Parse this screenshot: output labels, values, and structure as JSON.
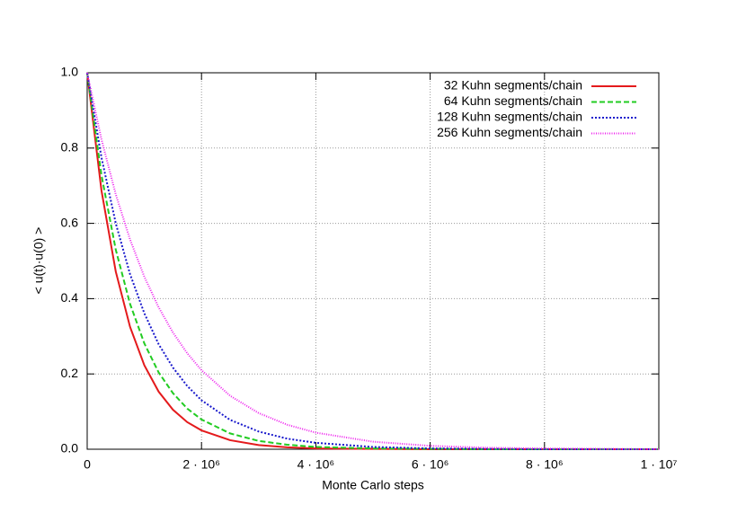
{
  "chart_data": {
    "type": "line",
    "xlabel": "Monte Carlo steps",
    "ylabel": "< u(t)·u(0) >",
    "x": [
      0,
      250000,
      500000,
      750000,
      1000000,
      1250000,
      1500000,
      1750000,
      2000000,
      2500000,
      3000000,
      3500000,
      4000000,
      5000000,
      6000000,
      7000000,
      8000000,
      9000000,
      10000000
    ],
    "series": [
      {
        "name": "32 Kuhn segments/chain",
        "color": "#e41a1c",
        "line_style": "solid",
        "values": [
          1,
          0.687,
          0.472,
          0.325,
          0.223,
          0.153,
          0.105,
          0.072,
          0.05,
          0.024,
          0.011,
          0.005,
          0.002,
          0.001,
          0,
          0,
          0,
          0,
          0
        ]
      },
      {
        "name": "64 Kuhn segments/chain",
        "color": "#22cc22",
        "line_style": "dashed",
        "values": [
          1,
          0.728,
          0.53,
          0.386,
          0.281,
          0.204,
          0.149,
          0.108,
          0.079,
          0.042,
          0.022,
          0.012,
          0.006,
          0.002,
          0.001,
          0,
          0,
          0,
          0
        ]
      },
      {
        "name": "128 Kuhn segments/chain",
        "color": "#1a1acc",
        "line_style": "dotted",
        "values": [
          1,
          0.775,
          0.6,
          0.465,
          0.361,
          0.279,
          0.217,
          0.168,
          0.13,
          0.078,
          0.047,
          0.028,
          0.017,
          0.006,
          0.002,
          0.001,
          0,
          0,
          0
        ]
      },
      {
        "name": "256 Kuhn segments/chain",
        "color": "#ee22ee",
        "line_style": "fine-dotted",
        "values": [
          1,
          0.823,
          0.677,
          0.557,
          0.458,
          0.377,
          0.31,
          0.255,
          0.21,
          0.142,
          0.096,
          0.065,
          0.044,
          0.02,
          0.009,
          0.004,
          0.002,
          0.001,
          0
        ]
      }
    ],
    "xlim": [
      0,
      10000000
    ],
    "xticks": [
      0,
      {
        "value": 2000000,
        "label": "2 · 10⁶"
      },
      {
        "value": 4000000,
        "label": "4 · 10⁶"
      },
      {
        "value": 6000000,
        "label": "6 · 10⁶"
      },
      {
        "value": 8000000,
        "label": "8 · 10⁶"
      },
      {
        "value": 10000000,
        "label": "1 · 10⁷"
      }
    ],
    "ylim": [
      0,
      1
    ],
    "yticks": [
      {
        "value": 0,
        "label": "0.0"
      },
      0.2,
      0.4,
      0.6,
      0.8,
      {
        "value": 1,
        "label": "1.0"
      }
    ],
    "grid": true,
    "legend": "top-right"
  }
}
